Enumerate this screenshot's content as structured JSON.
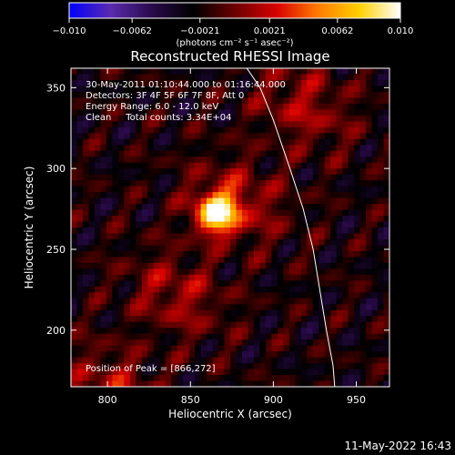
{
  "chart_data": {
    "type": "heatmap",
    "title": "Reconstructed RHESSI Image",
    "xlabel": "Heliocentric X (arcsec)",
    "ylabel": "Heliocentric Y (arcsec)",
    "xlim": [
      778,
      970
    ],
    "ylim": [
      165,
      362
    ],
    "x_ticks": [
      800,
      850,
      900,
      950
    ],
    "y_ticks": [
      200,
      250,
      300,
      350
    ],
    "colorbar": {
      "label": "(photons cm⁻² s⁻¹ asec⁻²)",
      "range": [
        -0.01,
        0.01
      ],
      "tick_values": [
        -0.01,
        -0.0062,
        -0.0021,
        0.0021,
        0.0062,
        0.01
      ],
      "tick_labels": [
        "−0.010",
        "−0.0062",
        "−0.0021",
        "0.0021",
        "0.0062",
        "0.010"
      ],
      "colormap": [
        "#0000ff",
        "#5a2bb0",
        "#2a0a4a",
        "#000000",
        "#6a0000",
        "#d80000",
        "#ff7a00",
        "#ffd000",
        "#ffffff"
      ]
    },
    "annotations": [
      "30-May-2011 01:10:44.000 to 01:16:44.000",
      "Detectors: 3F 4F 5F 6F 7F 8F, Att 0",
      "Energy Range: 6.0 - 12.0 keV",
      "Clean     Total counts: 3.34E+04"
    ],
    "peak_label": "Position of Peak = [866,272]",
    "peak": [
      866,
      272
    ],
    "limb_curve": [
      [
        884,
        362
      ],
      [
        892,
        350
      ],
      [
        900,
        330
      ],
      [
        910,
        300
      ],
      [
        918,
        275
      ],
      [
        924,
        250
      ],
      [
        928,
        225
      ],
      [
        932,
        200
      ],
      [
        936,
        178
      ],
      [
        937,
        165
      ]
    ]
  },
  "timestamp": "11-May-2022 16:43"
}
